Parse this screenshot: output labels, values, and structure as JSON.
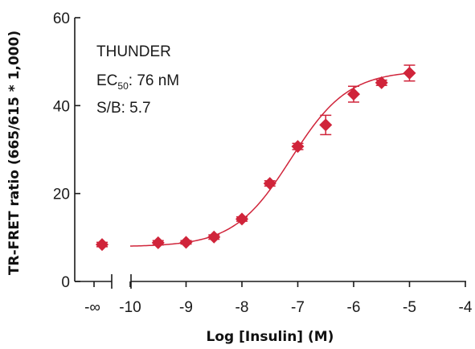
{
  "chart_data": {
    "type": "scatter",
    "xlabel": "Log [Insulin] (M)",
    "ylabel": "TR-FRET ratio (665/615 * 1,000)",
    "xlim": [
      -10.7,
      -4
    ],
    "ylim": [
      0,
      60
    ],
    "x_ticks": [
      -10,
      -9,
      -8,
      -7,
      -6,
      -5,
      -4
    ],
    "x_tick_labels": [
      "-10",
      "-9",
      "-8",
      "-7",
      "-6",
      "-5",
      "-4"
    ],
    "y_ticks": [
      0,
      20,
      40,
      60
    ],
    "y_tick_labels": [
      "0",
      "20",
      "40",
      "60"
    ],
    "baseline_tick_label": "-∞",
    "axis_break": true,
    "annotation": {
      "line1": "THUNDER",
      "line2_prefix": "EC",
      "line2_sub": "50",
      "line2_suffix": ": 76 nM",
      "line3": "S/B: 5.7"
    },
    "color": "#d0243a",
    "baseline_point": {
      "y": 8.4,
      "err": 0.5
    },
    "points": [
      {
        "x": -9.5,
        "y": 8.8,
        "err": 0.5
      },
      {
        "x": -9.0,
        "y": 8.9,
        "err": 0.4
      },
      {
        "x": -8.5,
        "y": 10.1,
        "err": 0.5
      },
      {
        "x": -8.0,
        "y": 14.2,
        "err": 0.5
      },
      {
        "x": -7.5,
        "y": 22.3,
        "err": 0.6
      },
      {
        "x": -7.0,
        "y": 30.7,
        "err": 0.7
      },
      {
        "x": -6.5,
        "y": 35.6,
        "err": 2.2
      },
      {
        "x": -6.0,
        "y": 42.6,
        "err": 1.8
      },
      {
        "x": -5.5,
        "y": 45.2,
        "err": 0.6
      },
      {
        "x": -5.0,
        "y": 47.4,
        "err": 1.8
      }
    ],
    "fit": {
      "bottom": 7.9,
      "top": 48.0,
      "log_ec50": -7.12,
      "hill": 0.85,
      "x_range": [
        -10,
        -5
      ]
    }
  }
}
